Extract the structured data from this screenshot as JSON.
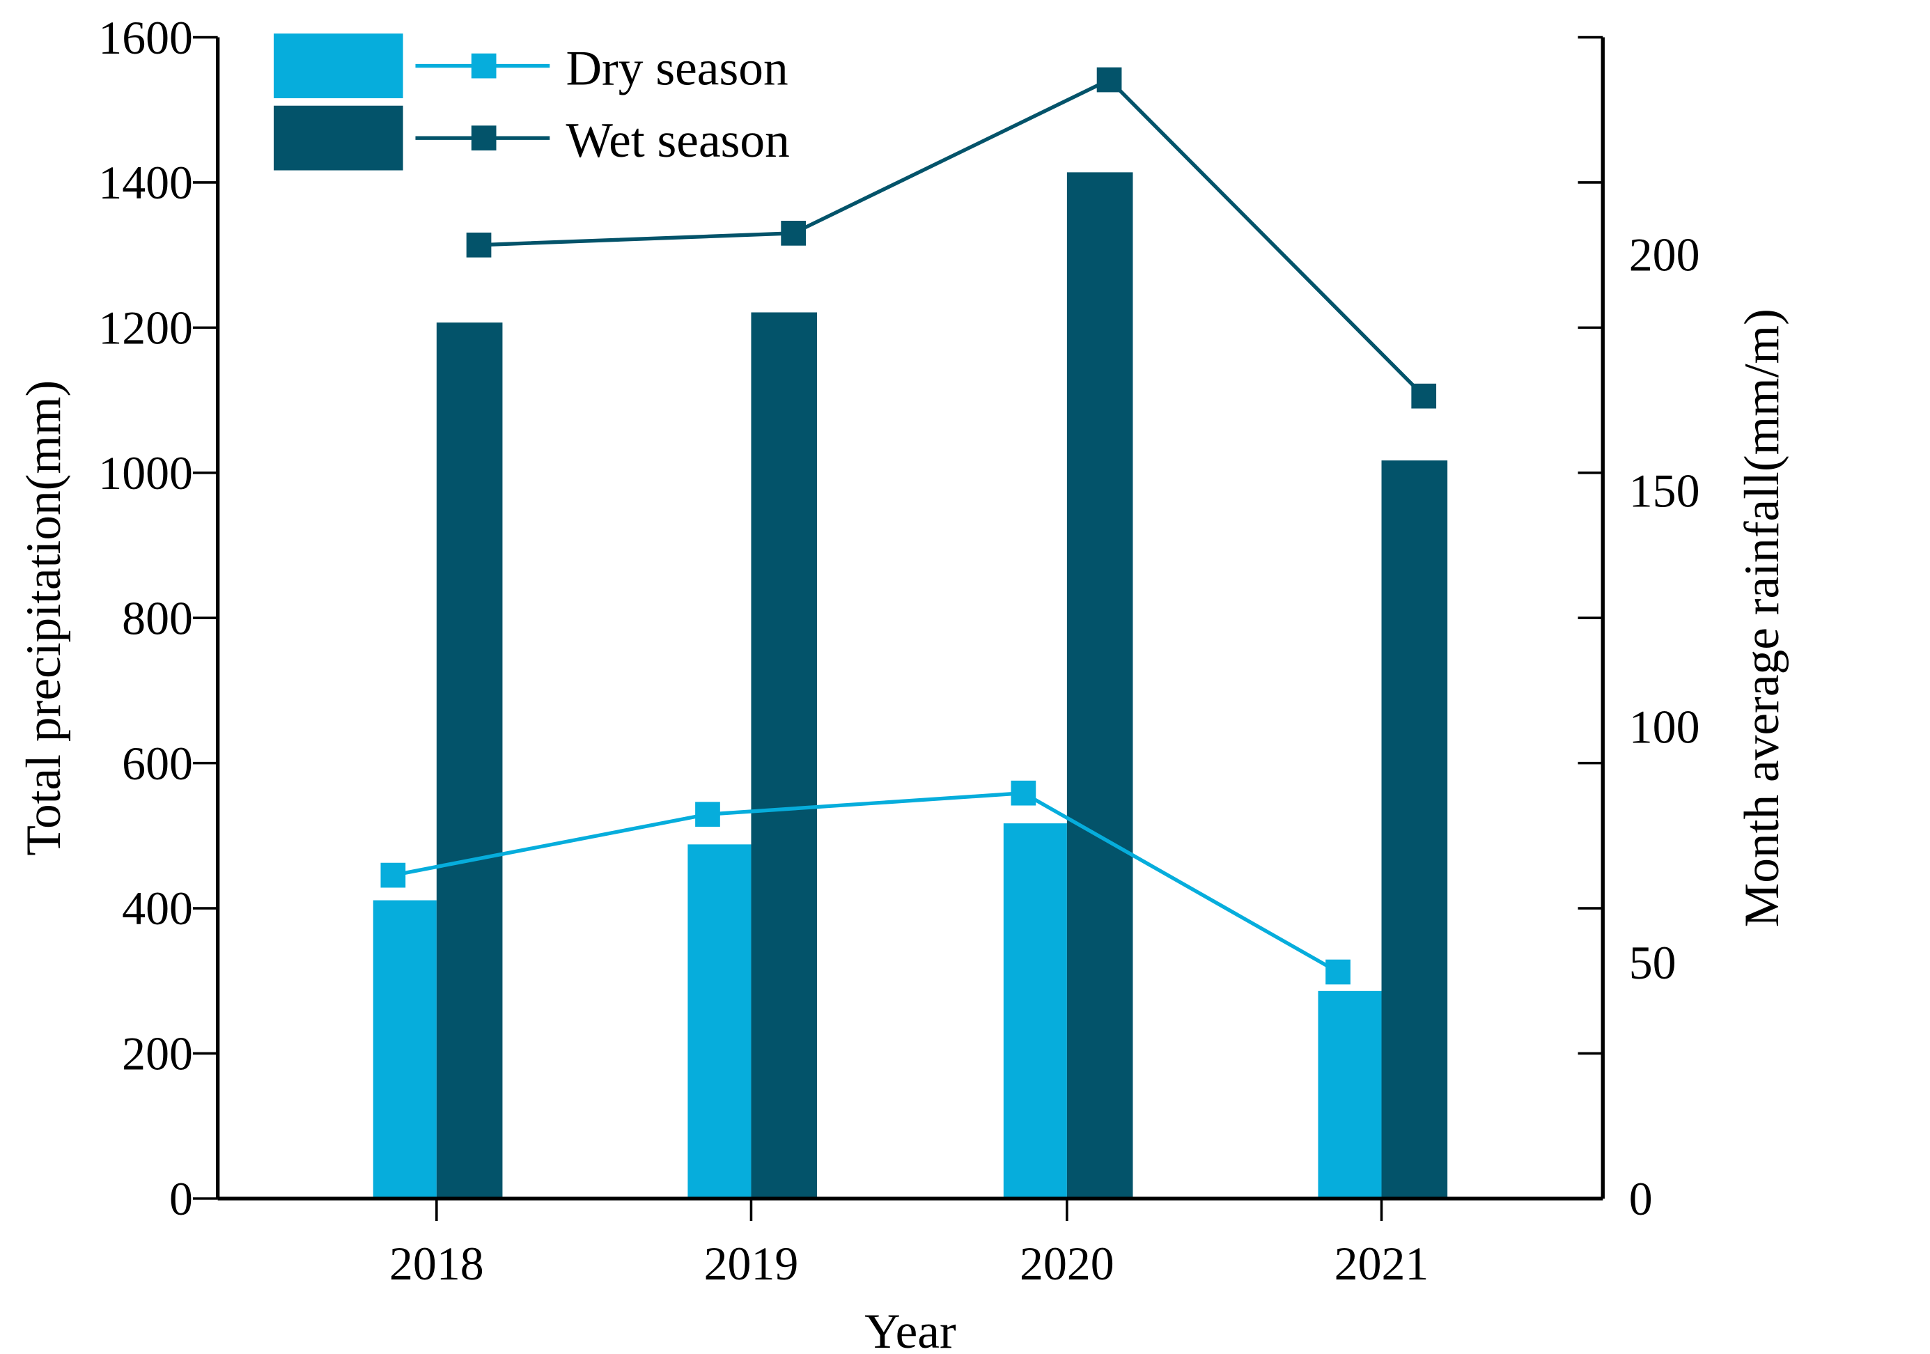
{
  "chart_data": {
    "type": "bar+line",
    "categories": [
      "2018",
      "2019",
      "2020",
      "2021"
    ],
    "xlabel": "Year",
    "ylabel": "Total precipitation(mm)",
    "y2label": "Month average rainfall(mm/m)",
    "ylim": [
      0,
      1600
    ],
    "y2lim": [
      0,
      246
    ],
    "yticks": [
      0,
      200,
      400,
      600,
      800,
      1000,
      1200,
      1400,
      1600
    ],
    "y2ticks": [
      0,
      50,
      100,
      150,
      200
    ],
    "grid": false,
    "legend_position": "top-left",
    "bars": [
      {
        "name": "Dry season",
        "color": "#06ADDC",
        "values": [
          411,
          488,
          517,
          286
        ]
      },
      {
        "name": "Wet season",
        "color": "#03536A",
        "values": [
          1207,
          1221,
          1414,
          1017
        ]
      }
    ],
    "lines": [
      {
        "name": "Dry season",
        "color": "#06ADDC",
        "axis": "right",
        "values": [
          68.5,
          81.4,
          85.9,
          48.0
        ]
      },
      {
        "name": "Wet season",
        "color": "#03536A",
        "axis": "right",
        "values": [
          202,
          204.5,
          237,
          170
        ]
      }
    ],
    "legend": [
      "Dry season",
      "Wet season"
    ]
  }
}
